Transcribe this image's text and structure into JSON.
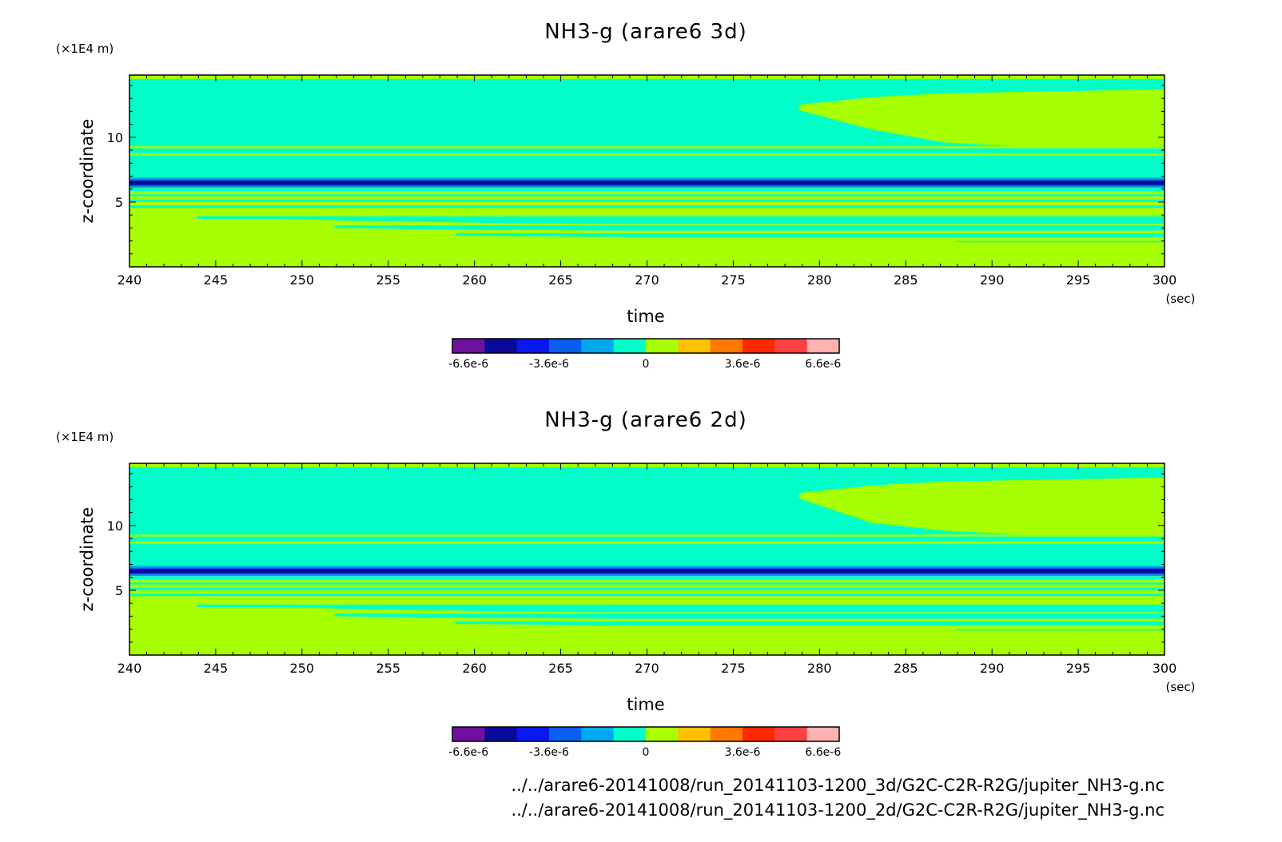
{
  "footer": {
    "lines": [
      "../../arare6-20141008/run_20141103-1200_3d/G2C-C2R-R2G/jupiter_NH3-g.nc",
      "../../arare6-20141008/run_20141103-1200_2d/G2C-C2R-R2G/jupiter_NH3-g.nc"
    ]
  },
  "colorbar": {
    "colors": [
      "#7010a0",
      "#0a0a9a",
      "#0a18f0",
      "#0a5ef0",
      "#00a8f0",
      "#00ffc8",
      "#a8ff00",
      "#ffc000",
      "#ff7800",
      "#ff2800",
      "#ff4040",
      "#ffb0b0"
    ],
    "labels": [
      "-6.6e-6",
      "-3.6e-6",
      "0",
      "3.6e-6",
      "6.6e-6"
    ],
    "label_values": [
      -6.6e-06,
      -3.6e-06,
      0,
      3.6e-06,
      6.6e-06
    ],
    "range": [
      -7.2e-06,
      7.2e-06
    ]
  },
  "chart_data": [
    {
      "type": "heatmap",
      "title": "NH3-g (arare6 3d)",
      "xlabel": "time",
      "x_unit": "(sec)",
      "ylabel": "z-coordinate",
      "y_unit": "(x1E4 m)",
      "xlim": [
        240,
        300
      ],
      "ylim": [
        0,
        14.8
      ],
      "xticks": [
        240,
        245,
        250,
        255,
        260,
        265,
        270,
        275,
        280,
        285,
        290,
        295,
        300
      ],
      "yticks": [
        5,
        10
      ],
      "background_value": 3e-07,
      "bands": [
        {
          "z": [
            14.5,
            14.8
          ],
          "value": 3e-07
        },
        {
          "z": [
            9.3,
            14.5
          ],
          "value": -3e-07
        },
        {
          "z": [
            9.15,
            9.3
          ],
          "value": 3e-07
        },
        {
          "z": [
            8.75,
            9.15
          ],
          "value": -3e-07
        },
        {
          "z": [
            8.6,
            8.75
          ],
          "value": 3e-07
        },
        {
          "z": [
            6.9,
            8.6
          ],
          "value": -3e-07
        },
        {
          "z": [
            6.75,
            6.9
          ],
          "value": -1.5e-06
        },
        {
          "z": [
            6.65,
            6.75
          ],
          "value": -2.7e-06
        },
        {
          "z": [
            6.3,
            6.65
          ],
          "value": -5.1e-06
        },
        {
          "z": [
            6.2,
            6.3
          ],
          "value": -2.7e-06
        },
        {
          "z": [
            6.1,
            6.2
          ],
          "value": -1.5e-06
        },
        {
          "z": [
            5.85,
            6.1
          ],
          "value": -3e-07
        },
        {
          "z": [
            5.45,
            5.6
          ],
          "value": -3e-07
        },
        {
          "z": [
            5.0,
            5.2
          ],
          "value": -3e-07
        },
        {
          "z": [
            4.55,
            4.75
          ],
          "value": -3e-07
        }
      ],
      "regions": [
        {
          "value": -3e-07,
          "x": [
            244,
            300
          ],
          "z_top": 3.9,
          "z_bottom": [
            3.7,
            3.7,
            3.55,
            3.45,
            3.35,
            3.3,
            3.3,
            3.3,
            3.3,
            3.3,
            3.3,
            3.3,
            3.3
          ]
        },
        {
          "value": -3e-07,
          "x": [
            252,
            300
          ],
          "z_top": 3.2,
          "z_bottom": [
            3.0,
            2.9,
            2.85,
            2.8,
            2.8,
            2.8,
            2.8,
            2.8,
            2.8,
            2.8
          ]
        },
        {
          "value": -3e-07,
          "x": [
            259,
            300
          ],
          "z_top": 2.6,
          "z_bottom": [
            2.4,
            2.35,
            2.3,
            2.3,
            2.3,
            2.3,
            2.3,
            2.3,
            2.3
          ]
        },
        {
          "value": -3e-07,
          "x": [
            288,
            300
          ],
          "z_top": 2.0,
          "z_bottom": [
            1.9,
            1.9,
            1.9
          ]
        },
        {
          "value": 3e-07,
          "x": [
            278.8,
            300
          ],
          "z_top": [
            12.5,
            13.1,
            13.4,
            13.5,
            13.6,
            13.7
          ],
          "z_bottom": [
            12.1,
            10.6,
            9.6,
            9.3,
            9.3,
            9.3
          ]
        }
      ]
    },
    {
      "type": "heatmap",
      "title": "NH3-g (arare6 2d)",
      "xlabel": "time",
      "x_unit": "(sec)",
      "ylabel": "z-coordinate",
      "y_unit": "(x1E4 m)",
      "xlim": [
        240,
        300
      ],
      "ylim": [
        0,
        14.8
      ],
      "xticks": [
        240,
        245,
        250,
        255,
        260,
        265,
        270,
        275,
        280,
        285,
        290,
        295,
        300
      ],
      "yticks": [
        5,
        10
      ],
      "background_value": 3e-07,
      "bands": [
        {
          "z": [
            14.5,
            14.8
          ],
          "value": 3e-07
        },
        {
          "z": [
            9.3,
            14.5
          ],
          "value": -3e-07
        },
        {
          "z": [
            9.15,
            9.3
          ],
          "value": 3e-07
        },
        {
          "z": [
            8.75,
            9.15
          ],
          "value": -3e-07
        },
        {
          "z": [
            8.6,
            8.75
          ],
          "value": 3e-07
        },
        {
          "z": [
            6.9,
            8.6
          ],
          "value": -3e-07
        },
        {
          "z": [
            6.75,
            6.9
          ],
          "value": -1.5e-06
        },
        {
          "z": [
            6.65,
            6.75
          ],
          "value": -2.7e-06
        },
        {
          "z": [
            6.3,
            6.65
          ],
          "value": -5.1e-06
        },
        {
          "z": [
            6.2,
            6.3
          ],
          "value": -2.7e-06
        },
        {
          "z": [
            6.1,
            6.2
          ],
          "value": -1.5e-06
        },
        {
          "z": [
            5.85,
            6.1
          ],
          "value": -3e-07
        },
        {
          "z": [
            5.45,
            5.6
          ],
          "value": -3e-07
        },
        {
          "z": [
            5.0,
            5.2
          ],
          "value": -3e-07
        },
        {
          "z": [
            4.55,
            4.75
          ],
          "value": -3e-07
        }
      ],
      "regions": [
        {
          "value": -3e-07,
          "x": [
            244,
            300
          ],
          "z_top": 3.9,
          "z_bottom": [
            3.7,
            3.7,
            3.55,
            3.45,
            3.35,
            3.3,
            3.3,
            3.3,
            3.3,
            3.3,
            3.3,
            3.3,
            3.3
          ]
        },
        {
          "value": -3e-07,
          "x": [
            252,
            300
          ],
          "z_top": 3.2,
          "z_bottom": [
            3.0,
            2.9,
            2.85,
            2.8,
            2.8,
            2.8,
            2.8,
            2.8,
            2.8,
            2.8
          ]
        },
        {
          "value": -3e-07,
          "x": [
            259,
            300
          ],
          "z_top": 2.6,
          "z_bottom": [
            2.4,
            2.35,
            2.3,
            2.3,
            2.3,
            2.3,
            2.3,
            2.3,
            2.3
          ]
        },
        {
          "value": -3e-07,
          "x": [
            288,
            300
          ],
          "z_top": 2.0,
          "z_bottom": [
            1.9,
            1.9,
            1.9
          ]
        },
        {
          "value": 3e-07,
          "x": [
            278.8,
            300
          ],
          "z_top": [
            12.5,
            13.1,
            13.4,
            13.5,
            13.6,
            13.7
          ],
          "z_bottom": [
            12.1,
            10.2,
            9.6,
            9.3,
            9.3,
            9.3
          ]
        }
      ]
    }
  ]
}
